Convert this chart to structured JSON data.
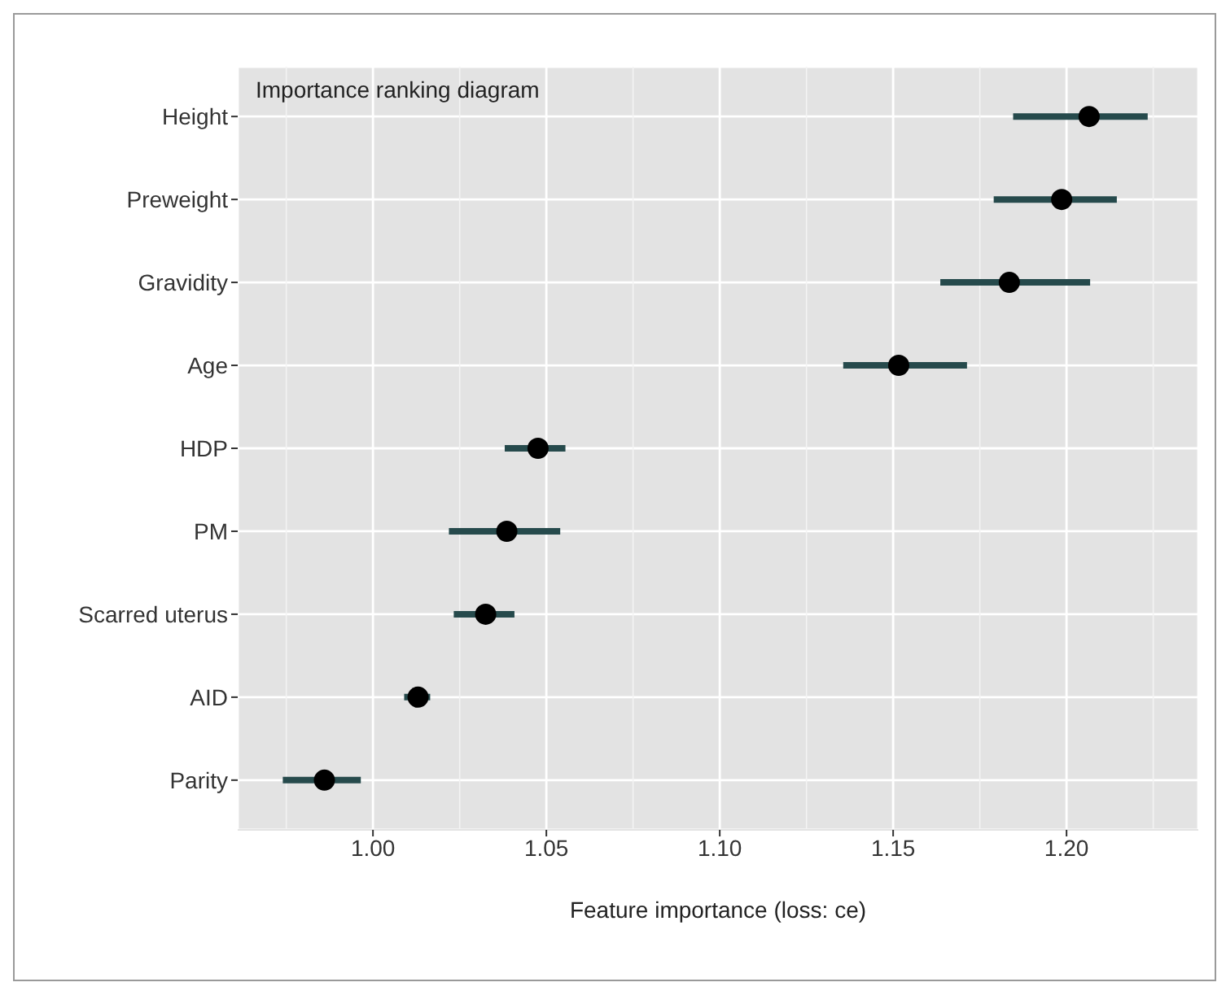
{
  "chart_data": {
    "type": "scatter",
    "orientation": "horizontal",
    "xlabel": "Feature importance (loss: ce)",
    "annotations": [
      "Importance ranking diagram"
    ],
    "categories": [
      "Height",
      "Preweight",
      "Gravidity",
      "Age",
      "HDP",
      "PM",
      "Scarred uterus",
      "AID",
      "Parity"
    ],
    "series": [
      {
        "color": "#000000",
        "values": [
          1.2065,
          1.1986,
          1.1835,
          1.1516,
          1.0476,
          1.0386,
          1.0325,
          1.013,
          0.986
        ],
        "errors": [
          [
            1.1846,
            1.2234
          ],
          [
            1.179,
            1.2145
          ],
          [
            1.1636,
            1.2068
          ],
          [
            1.1356,
            1.1713
          ],
          [
            1.038,
            1.0555
          ],
          [
            1.0219,
            1.054
          ],
          [
            1.0233,
            1.0408
          ],
          [
            1.009,
            1.0165
          ],
          [
            0.974,
            0.9965
          ]
        ]
      }
    ],
    "xlim": [
      0.961,
      1.238
    ],
    "xticks": [
      {
        "value": 1,
        "label": "1.00"
      },
      {
        "value": 1.05,
        "label": "1.05"
      },
      {
        "value": 1.1,
        "label": "1.10"
      },
      {
        "value": 1.15,
        "label": "1.15"
      },
      {
        "value": 1.2,
        "label": "1.20"
      }
    ],
    "grid": true,
    "marker": "circle",
    "legend": false
  }
}
